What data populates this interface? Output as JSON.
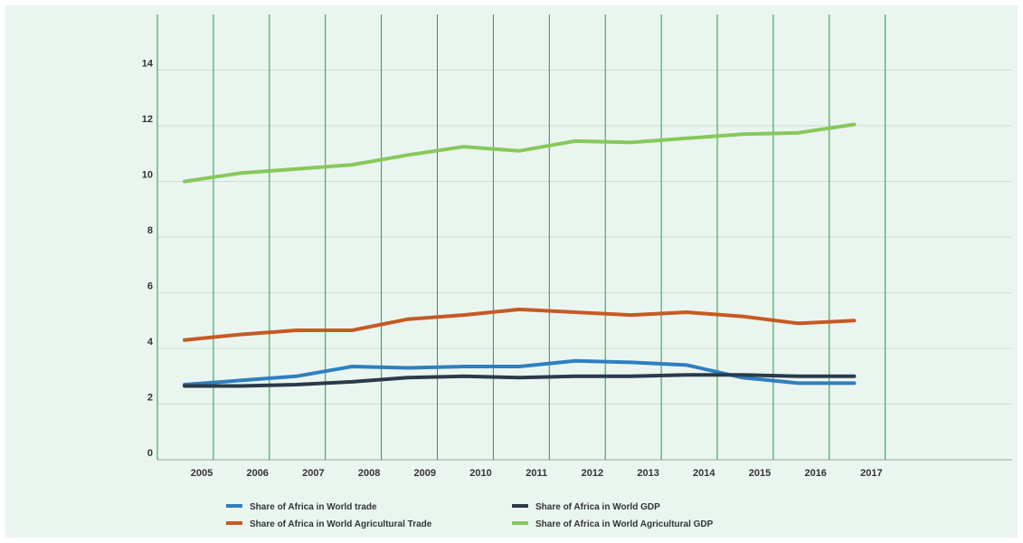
{
  "chart_data": {
    "type": "line",
    "title": "",
    "xlabel": "",
    "ylabel": "",
    "x": [
      "2005",
      "2006",
      "2007",
      "2008",
      "2009",
      "2010",
      "2011",
      "2012",
      "2013",
      "2014",
      "2015",
      "2016",
      "2017"
    ],
    "ylim": [
      0,
      16
    ],
    "yticks": [
      0,
      2,
      4,
      6,
      8,
      10,
      12,
      14
    ],
    "grid": true,
    "legend_position": "bottom",
    "series": [
      {
        "name": "Share of Africa in World trade",
        "color": "#2e7fc1",
        "values": [
          2.7,
          2.85,
          3.0,
          3.35,
          3.3,
          3.35,
          3.35,
          3.55,
          3.5,
          3.4,
          2.95,
          2.75,
          2.75
        ]
      },
      {
        "name": "Share of Africa in World GDP",
        "color": "#2b3a4a",
        "values": [
          2.65,
          2.65,
          2.7,
          2.8,
          2.95,
          3.0,
          2.95,
          3.0,
          3.0,
          3.05,
          3.05,
          3.0,
          3.0
        ]
      },
      {
        "name": "Share of Africa in World Agricultural Trade",
        "color": "#c55a22",
        "values": [
          4.3,
          4.5,
          4.65,
          4.65,
          5.05,
          5.2,
          5.4,
          5.3,
          5.2,
          5.3,
          5.15,
          4.9,
          5.0
        ]
      },
      {
        "name": "Share of Africa in World Agricultural GDP",
        "color": "#86c95b",
        "values": [
          10.0,
          10.3,
          10.45,
          10.6,
          10.95,
          11.25,
          11.1,
          11.45,
          11.4,
          11.55,
          11.7,
          11.75,
          12.05
        ]
      }
    ]
  }
}
